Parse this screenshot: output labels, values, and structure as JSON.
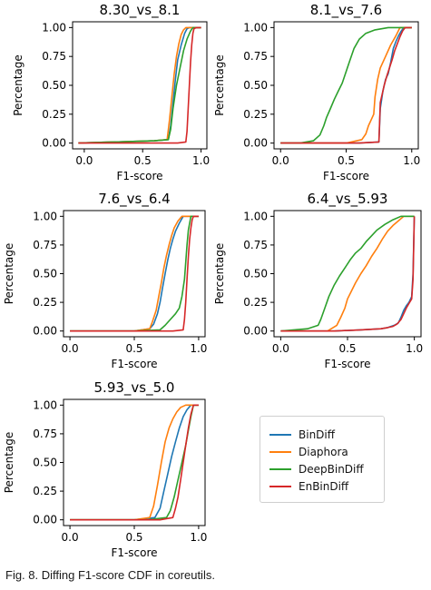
{
  "caption": "Fig. 8. Diffing F1-score CDF in coreutils.",
  "legend": [
    {
      "name": "BinDiff",
      "color": "#1f77b4"
    },
    {
      "name": "Diaphora",
      "color": "#ff7f0e"
    },
    {
      "name": "DeepBinDiff",
      "color": "#2ca02c"
    },
    {
      "name": "EnBinDiff",
      "color": "#d62728"
    }
  ],
  "chart_data": [
    {
      "type": "line",
      "title": "8.30_vs_8.1",
      "xlabel": "F1-score",
      "ylabel": "Percentage",
      "xlim": [
        -0.1,
        1.05
      ],
      "ylim": [
        -0.05,
        1.05
      ],
      "xticks": [
        {
          "v": 0.0,
          "label": "0.0"
        },
        {
          "v": 0.5,
          "label": "0.5"
        },
        {
          "v": 1.0,
          "label": "1.0"
        }
      ],
      "yticks": [
        {
          "v": 0.0,
          "label": "0.00"
        },
        {
          "v": 0.25,
          "label": "0.25"
        },
        {
          "v": 0.5,
          "label": "0.50"
        },
        {
          "v": 0.75,
          "label": "0.75"
        },
        {
          "v": 1.0,
          "label": "1.00"
        }
      ],
      "series": [
        {
          "name": "BinDiff",
          "x": [
            -0.05,
            0.6,
            0.72,
            0.74,
            0.76,
            0.78,
            0.8,
            0.83,
            0.86,
            0.88,
            0.9,
            1.0
          ],
          "y": [
            0.0,
            0.02,
            0.03,
            0.15,
            0.35,
            0.55,
            0.72,
            0.85,
            0.95,
            0.99,
            1.0,
            1.0
          ]
        },
        {
          "name": "Diaphora",
          "x": [
            -0.05,
            0.6,
            0.71,
            0.73,
            0.75,
            0.77,
            0.79,
            0.81,
            0.83,
            0.85,
            0.87,
            1.0
          ],
          "y": [
            0.0,
            0.02,
            0.03,
            0.2,
            0.4,
            0.6,
            0.75,
            0.86,
            0.94,
            0.98,
            1.0,
            1.0
          ]
        },
        {
          "name": "DeepBinDiff",
          "x": [
            -0.05,
            0.6,
            0.72,
            0.74,
            0.76,
            0.79,
            0.82,
            0.85,
            0.88,
            0.91,
            0.93,
            1.0
          ],
          "y": [
            0.0,
            0.02,
            0.03,
            0.12,
            0.3,
            0.5,
            0.65,
            0.8,
            0.9,
            0.97,
            1.0,
            1.0
          ]
        },
        {
          "name": "EnBinDiff",
          "x": [
            -0.05,
            0.8,
            0.87,
            0.88,
            0.89,
            0.9,
            0.91,
            0.92,
            0.93,
            0.94,
            0.96,
            1.0
          ],
          "y": [
            0.0,
            0.0,
            0.01,
            0.1,
            0.3,
            0.5,
            0.7,
            0.85,
            0.95,
            0.99,
            1.0,
            1.0
          ]
        }
      ]
    },
    {
      "type": "line",
      "title": "8.1_vs_7.6",
      "xlabel": "F1-score",
      "ylabel": "Percentage",
      "xlim": [
        -0.05,
        1.05
      ],
      "ylim": [
        -0.05,
        1.05
      ],
      "xticks": [
        {
          "v": 0.0,
          "label": "0.0"
        },
        {
          "v": 0.5,
          "label": "0.5"
        },
        {
          "v": 1.0,
          "label": "1.0"
        }
      ],
      "yticks": [
        {
          "v": 0.0,
          "label": "0.00"
        },
        {
          "v": 0.25,
          "label": "0.25"
        },
        {
          "v": 0.5,
          "label": "0.50"
        },
        {
          "v": 0.75,
          "label": "0.75"
        },
        {
          "v": 1.0,
          "label": "1.00"
        }
      ],
      "series": [
        {
          "name": "BinDiff",
          "x": [
            0.0,
            0.6,
            0.75,
            0.76,
            0.78,
            0.8,
            0.82,
            0.84,
            0.86,
            0.88,
            0.9,
            0.92,
            0.94,
            1.0
          ],
          "y": [
            0.0,
            0.0,
            0.01,
            0.3,
            0.45,
            0.55,
            0.6,
            0.7,
            0.82,
            0.88,
            0.93,
            0.97,
            1.0,
            1.0
          ]
        },
        {
          "name": "Diaphora",
          "x": [
            0.0,
            0.5,
            0.62,
            0.65,
            0.67,
            0.69,
            0.71,
            0.72,
            0.74,
            0.76,
            0.8,
            0.84,
            0.88,
            0.91,
            1.0
          ],
          "y": [
            0.0,
            0.0,
            0.03,
            0.08,
            0.15,
            0.2,
            0.25,
            0.4,
            0.55,
            0.65,
            0.75,
            0.85,
            0.93,
            1.0,
            1.0
          ]
        },
        {
          "name": "DeepBinDiff",
          "x": [
            0.0,
            0.15,
            0.25,
            0.3,
            0.33,
            0.35,
            0.38,
            0.41,
            0.44,
            0.47,
            0.5,
            0.53,
            0.56,
            0.6,
            0.65,
            0.72,
            0.82,
            1.0
          ],
          "y": [
            0.0,
            0.0,
            0.02,
            0.07,
            0.15,
            0.22,
            0.3,
            0.38,
            0.45,
            0.52,
            0.62,
            0.72,
            0.82,
            0.9,
            0.95,
            0.98,
            1.0,
            1.0
          ]
        },
        {
          "name": "EnBinDiff",
          "x": [
            0.0,
            0.6,
            0.75,
            0.76,
            0.79,
            0.81,
            0.83,
            0.85,
            0.87,
            0.89,
            0.91,
            0.93,
            0.95,
            1.0
          ],
          "y": [
            0.0,
            0.0,
            0.01,
            0.35,
            0.5,
            0.58,
            0.65,
            0.72,
            0.8,
            0.86,
            0.92,
            0.97,
            1.0,
            1.0
          ]
        }
      ]
    },
    {
      "type": "line",
      "title": "7.6_vs_6.4",
      "xlabel": "F1-score",
      "ylabel": "Percentage",
      "xlim": [
        -0.05,
        1.05
      ],
      "ylim": [
        -0.05,
        1.05
      ],
      "xticks": [
        {
          "v": 0.0,
          "label": "0.0"
        },
        {
          "v": 0.5,
          "label": "0.5"
        },
        {
          "v": 1.0,
          "label": "1.0"
        }
      ],
      "yticks": [
        {
          "v": 0.0,
          "label": "0.00"
        },
        {
          "v": 0.25,
          "label": "0.25"
        },
        {
          "v": 0.5,
          "label": "0.50"
        },
        {
          "v": 0.75,
          "label": "0.75"
        },
        {
          "v": 1.0,
          "label": "1.00"
        }
      ],
      "series": [
        {
          "name": "BinDiff",
          "x": [
            0.0,
            0.5,
            0.62,
            0.65,
            0.68,
            0.7,
            0.72,
            0.74,
            0.76,
            0.78,
            0.8,
            0.82,
            0.85,
            0.88,
            1.0
          ],
          "y": [
            0.0,
            0.0,
            0.02,
            0.06,
            0.15,
            0.25,
            0.38,
            0.5,
            0.62,
            0.72,
            0.8,
            0.87,
            0.94,
            1.0,
            1.0
          ]
        },
        {
          "name": "Diaphora",
          "x": [
            0.0,
            0.5,
            0.62,
            0.64,
            0.67,
            0.69,
            0.71,
            0.73,
            0.75,
            0.77,
            0.79,
            0.81,
            0.84,
            0.87,
            1.0
          ],
          "y": [
            0.0,
            0.0,
            0.02,
            0.08,
            0.18,
            0.3,
            0.42,
            0.55,
            0.66,
            0.75,
            0.83,
            0.9,
            0.96,
            1.0,
            1.0
          ]
        },
        {
          "name": "DeepBinDiff",
          "x": [
            0.0,
            0.5,
            0.7,
            0.74,
            0.78,
            0.82,
            0.85,
            0.87,
            0.89,
            0.9,
            0.91,
            0.92,
            0.94,
            1.0
          ],
          "y": [
            0.0,
            0.0,
            0.01,
            0.05,
            0.1,
            0.15,
            0.2,
            0.3,
            0.45,
            0.6,
            0.75,
            0.88,
            1.0,
            1.0
          ]
        },
        {
          "name": "EnBinDiff",
          "x": [
            0.0,
            0.8,
            0.88,
            0.89,
            0.9,
            0.91,
            0.92,
            0.93,
            0.94,
            0.95,
            0.96,
            1.0
          ],
          "y": [
            0.0,
            0.0,
            0.01,
            0.1,
            0.25,
            0.45,
            0.65,
            0.8,
            0.9,
            0.97,
            1.0,
            1.0
          ]
        }
      ]
    },
    {
      "type": "line",
      "title": "6.4_vs_5.93",
      "xlabel": "F1-score",
      "ylabel": "Percentage",
      "xlim": [
        -0.05,
        1.05
      ],
      "ylim": [
        -0.05,
        1.05
      ],
      "xticks": [
        {
          "v": 0.0,
          "label": "0.0"
        },
        {
          "v": 0.5,
          "label": "0.5"
        },
        {
          "v": 1.0,
          "label": "1.0"
        }
      ],
      "yticks": [
        {
          "v": 0.0,
          "label": "0.00"
        },
        {
          "v": 0.25,
          "label": "0.25"
        },
        {
          "v": 0.5,
          "label": "0.50"
        },
        {
          "v": 0.75,
          "label": "0.75"
        },
        {
          "v": 1.0,
          "label": "1.00"
        }
      ],
      "series": [
        {
          "name": "BinDiff",
          "x": [
            0.0,
            0.4,
            0.6,
            0.75,
            0.8,
            0.85,
            0.88,
            0.9,
            0.92,
            0.94,
            0.96,
            0.98,
            0.99,
            1.0
          ],
          "y": [
            0.0,
            0.0,
            0.01,
            0.02,
            0.03,
            0.05,
            0.07,
            0.12,
            0.18,
            0.22,
            0.25,
            0.3,
            0.5,
            1.0
          ]
        },
        {
          "name": "Diaphora",
          "x": [
            0.0,
            0.35,
            0.42,
            0.45,
            0.48,
            0.5,
            0.53,
            0.56,
            0.6,
            0.64,
            0.68,
            0.72,
            0.76,
            0.8,
            0.84,
            0.88,
            0.92,
            1.0
          ],
          "y": [
            0.0,
            0.0,
            0.05,
            0.12,
            0.2,
            0.28,
            0.35,
            0.42,
            0.5,
            0.57,
            0.65,
            0.72,
            0.8,
            0.87,
            0.92,
            0.96,
            1.0,
            1.0
          ]
        },
        {
          "name": "DeepBinDiff",
          "x": [
            0.0,
            0.2,
            0.28,
            0.3,
            0.33,
            0.36,
            0.4,
            0.44,
            0.48,
            0.52,
            0.56,
            0.6,
            0.64,
            0.68,
            0.72,
            0.78,
            0.84,
            0.9,
            1.0
          ],
          "y": [
            0.0,
            0.02,
            0.05,
            0.1,
            0.2,
            0.3,
            0.4,
            0.48,
            0.55,
            0.62,
            0.68,
            0.72,
            0.78,
            0.83,
            0.88,
            0.93,
            0.97,
            1.0,
            1.0
          ]
        },
        {
          "name": "EnBinDiff",
          "x": [
            0.0,
            0.4,
            0.6,
            0.75,
            0.8,
            0.84,
            0.87,
            0.9,
            0.92,
            0.94,
            0.96,
            0.98,
            0.99,
            1.0
          ],
          "y": [
            0.0,
            0.0,
            0.01,
            0.02,
            0.03,
            0.04,
            0.06,
            0.1,
            0.15,
            0.2,
            0.24,
            0.28,
            0.45,
            1.0
          ]
        }
      ]
    },
    {
      "type": "line",
      "title": "5.93_vs_5.0",
      "xlabel": "F1-score",
      "ylabel": "Percentage",
      "xlim": [
        -0.05,
        1.05
      ],
      "ylim": [
        -0.05,
        1.05
      ],
      "xticks": [
        {
          "v": 0.0,
          "label": "0.0"
        },
        {
          "v": 0.5,
          "label": "0.5"
        },
        {
          "v": 1.0,
          "label": "1.0"
        }
      ],
      "yticks": [
        {
          "v": 0.0,
          "label": "0.00"
        },
        {
          "v": 0.25,
          "label": "0.25"
        },
        {
          "v": 0.5,
          "label": "0.50"
        },
        {
          "v": 0.75,
          "label": "0.75"
        },
        {
          "v": 1.0,
          "label": "1.00"
        }
      ],
      "series": [
        {
          "name": "BinDiff",
          "x": [
            0.0,
            0.5,
            0.66,
            0.7,
            0.73,
            0.76,
            0.79,
            0.82,
            0.85,
            0.88,
            0.91,
            0.94,
            1.0
          ],
          "y": [
            0.0,
            0.0,
            0.02,
            0.1,
            0.25,
            0.4,
            0.55,
            0.68,
            0.8,
            0.9,
            0.96,
            1.0,
            1.0
          ]
        },
        {
          "name": "Diaphora",
          "x": [
            0.0,
            0.5,
            0.62,
            0.65,
            0.68,
            0.71,
            0.74,
            0.77,
            0.8,
            0.83,
            0.86,
            0.9,
            1.0
          ],
          "y": [
            0.0,
            0.0,
            0.02,
            0.12,
            0.3,
            0.5,
            0.68,
            0.8,
            0.88,
            0.94,
            0.98,
            1.0,
            1.0
          ]
        },
        {
          "name": "DeepBinDiff",
          "x": [
            0.0,
            0.6,
            0.75,
            0.78,
            0.81,
            0.84,
            0.87,
            0.9,
            0.92,
            0.94,
            0.96,
            1.0
          ],
          "y": [
            0.0,
            0.0,
            0.02,
            0.08,
            0.2,
            0.35,
            0.5,
            0.65,
            0.78,
            0.9,
            1.0,
            1.0
          ]
        },
        {
          "name": "EnBinDiff",
          "x": [
            0.0,
            0.7,
            0.8,
            0.82,
            0.84,
            0.86,
            0.88,
            0.9,
            0.92,
            0.94,
            0.96,
            1.0
          ],
          "y": [
            0.0,
            0.0,
            0.02,
            0.1,
            0.2,
            0.35,
            0.5,
            0.65,
            0.8,
            0.92,
            1.0,
            1.0
          ]
        }
      ]
    }
  ]
}
